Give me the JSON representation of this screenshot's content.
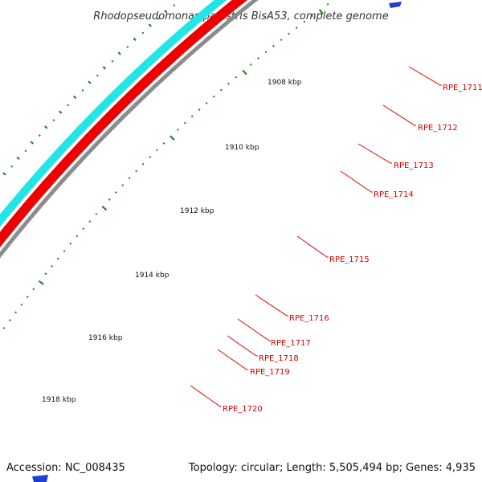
{
  "title": "Rhodopseudomonas palustris BisA53, complete genome",
  "footer": {
    "accession": "Accession: NC_008435",
    "summary": "Topology: circular; Length: 5,505,494 bp; Genes: 4,935"
  },
  "kbp_labels": [
    "1908 kbp",
    "1910 kbp",
    "1912 kbp",
    "1914 kbp",
    "1916 kbp",
    "1918 kbp"
  ],
  "gene_labels": [
    "RPE_1711",
    "RPE_1712",
    "RPE_1713",
    "RPE_1714",
    "RPE_1715",
    "RPE_1716",
    "RPE_1717",
    "RPE_1718",
    "RPE_1719",
    "RPE_1720"
  ],
  "colors": {
    "backbone": "#8c8c8c",
    "forward_genes": "#ee0000",
    "reverse_genes": "#22e6e6",
    "highlight_feature": "#3a3a8f",
    "ticks": "#1a7a1a",
    "label_lines": "#e00000",
    "label_text": "#d40000"
  }
}
